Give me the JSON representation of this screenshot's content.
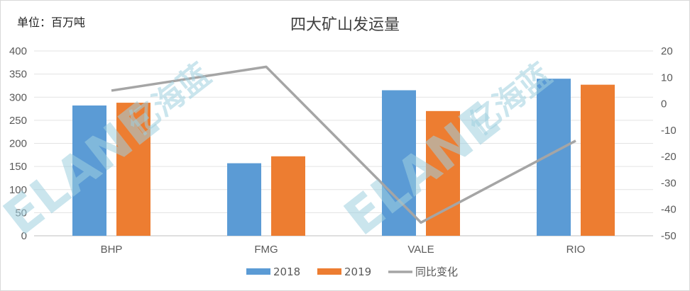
{
  "chart_data": {
    "type": "bar",
    "title": "四大矿山发运量",
    "unit_label": "单位：百万吨",
    "categories": [
      "BHP",
      "FMG",
      "VALE",
      "RIO"
    ],
    "series": [
      {
        "name": "2018",
        "type": "bar",
        "axis": "left",
        "color": "#5b9bd5",
        "values": [
          282,
          157,
          315,
          340
        ]
      },
      {
        "name": "2019",
        "type": "bar",
        "axis": "left",
        "color": "#ed7d31",
        "values": [
          288,
          172,
          270,
          327
        ]
      },
      {
        "name": "同比变化",
        "type": "line",
        "axis": "right",
        "color": "#a5a5a5",
        "values": [
          5,
          14,
          -45,
          -14
        ]
      }
    ],
    "y_left": {
      "lim": [
        0,
        400
      ],
      "ticks": [
        0,
        50,
        100,
        150,
        200,
        250,
        300,
        350,
        400
      ]
    },
    "y_right": {
      "lim": [
        -50,
        20
      ],
      "ticks": [
        -50,
        -40,
        -30,
        -20,
        -10,
        0,
        10,
        20
      ]
    },
    "grid": true,
    "legend_position": "bottom",
    "watermark": {
      "brand": "ELANE",
      "chinese": "亿海蓝"
    }
  }
}
